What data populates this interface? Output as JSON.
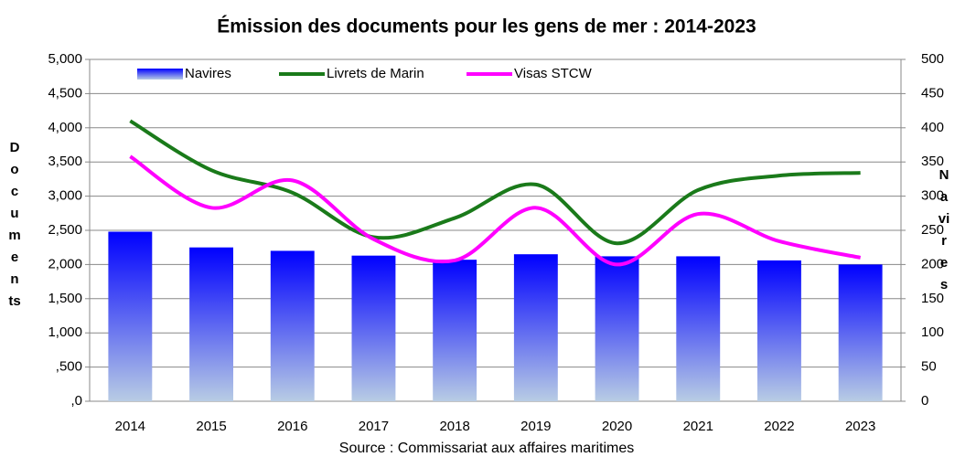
{
  "chart_data": {
    "type": "bar_line",
    "title": "Émission des documents pour les gens de mer : 2014-2023",
    "y_label": "Documents",
    "y2_label": "Navires",
    "source": "Source : Commissariat aux affaires maritimes",
    "categories": [
      "2014",
      "2015",
      "2016",
      "2017",
      "2018",
      "2019",
      "2020",
      "2021",
      "2022",
      "2023"
    ],
    "series": [
      {
        "name": "Navires",
        "type": "bar",
        "axis": "y2",
        "color": "#0000ff",
        "values": [
          248,
          225,
          220,
          213,
          207,
          215,
          212,
          212,
          206,
          200
        ]
      },
      {
        "name": "Livrets de Marin",
        "type": "line",
        "color": "#1a7a1a",
        "values": [
          4100,
          3380,
          3050,
          2400,
          2680,
          3170,
          2310,
          3090,
          3300,
          3340
        ]
      },
      {
        "name": "Visas STCW",
        "type": "line",
        "color": "#ff00ff",
        "values": [
          3580,
          2830,
          3230,
          2370,
          2060,
          2830,
          2000,
          2740,
          2340,
          2100
        ]
      }
    ],
    "ylim": [
      0,
      5000
    ],
    "yticks": [
      {
        "value": 0,
        "label": ",0"
      },
      {
        "value": 500,
        "label": ",500"
      },
      {
        "value": 1000,
        "label": "1,000"
      },
      {
        "value": 1500,
        "label": "1,500"
      },
      {
        "value": 2000,
        "label": "2,000"
      },
      {
        "value": 2500,
        "label": "2,500"
      },
      {
        "value": 3000,
        "label": "3,000"
      },
      {
        "value": 3500,
        "label": "3,500"
      },
      {
        "value": 4000,
        "label": "4,000"
      },
      {
        "value": 4500,
        "label": "4,500"
      },
      {
        "value": 5000,
        "label": "5,000"
      }
    ],
    "y2lim": [
      0,
      500
    ],
    "y2ticks": [
      0,
      50,
      100,
      150,
      200,
      250,
      300,
      350,
      400,
      450,
      500
    ],
    "grid": true,
    "legend": "top-left"
  }
}
